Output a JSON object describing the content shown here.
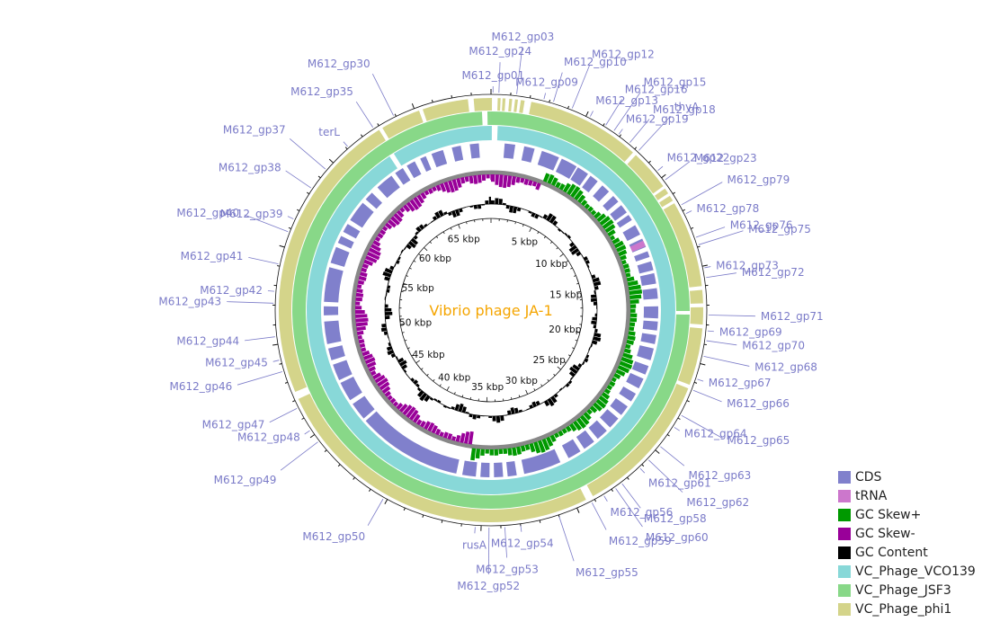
{
  "title": "Vibrio phage JA-1",
  "genome_kbp": 69,
  "colors": {
    "title": "#f5a500",
    "label": "#7b7bc8",
    "cds": "#8080cc",
    "trna": "#cc77cc",
    "gc_skew_plus": "#009900",
    "gc_skew_minus": "#990099",
    "gc_content": "#000000",
    "vco139": "#88d8d8",
    "jsf3": "#88d888",
    "phi1": "#d4d48a",
    "backbone": "#888888"
  },
  "kbp_ticks": [
    "5 kbp",
    "10 kbp",
    "15 kbp",
    "20 kbp",
    "25 kbp",
    "30 kbp",
    "35 kbp",
    "40 kbp",
    "45 kbp",
    "50 kbp",
    "55 kbp",
    "60 kbp",
    "65 kbp"
  ],
  "legend": [
    {
      "label": "CDS",
      "color": "#8080cc"
    },
    {
      "label": "tRNA",
      "color": "#cc77cc"
    },
    {
      "label": "GC Skew+",
      "color": "#009900"
    },
    {
      "label": "GC Skew-",
      "color": "#990099"
    },
    {
      "label": "GC Content",
      "color": "#000000"
    },
    {
      "label": "VC_Phage_VCO139",
      "color": "#88d8d8"
    },
    {
      "label": "VC_Phage_JSF3",
      "color": "#88d888"
    },
    {
      "label": "VC_Phage_phi1",
      "color": "#d4d48a"
    }
  ],
  "gene_labels": [
    {
      "text": "M612_gp01",
      "kbp": 0.1
    },
    {
      "text": "M612_gp24",
      "kbp": 0.4
    },
    {
      "text": "M612_gp03",
      "kbp": 1.3
    },
    {
      "text": "M612_gp09",
      "kbp": 2.7
    },
    {
      "text": "M612_gp10",
      "kbp": 3.2
    },
    {
      "text": "M612_gp12",
      "kbp": 4.2
    },
    {
      "text": "M612_gp13",
      "kbp": 5.2
    },
    {
      "text": "M612_gp16",
      "kbp": 6.1
    },
    {
      "text": "M612_gp15",
      "kbp": 6.6
    },
    {
      "text": "M612_gp19",
      "kbp": 6.9
    },
    {
      "text": "M612_gp18",
      "kbp": 7.6
    },
    {
      "text": "thyA",
      "kbp": 8.2
    },
    {
      "text": "M612_gp22",
      "kbp": 9.6
    },
    {
      "text": "M612_gp23",
      "kbp": 10.2
    },
    {
      "text": "M612_gp79",
      "kbp": 11.7
    },
    {
      "text": "M612_gp78",
      "kbp": 12.2
    },
    {
      "text": "M612_gp76",
      "kbp": 13.5
    },
    {
      "text": "M612_gp75",
      "kbp": 13.9
    },
    {
      "text": "M612_gp73",
      "kbp": 15.1
    },
    {
      "text": "M612_gp72",
      "kbp": 15.6
    },
    {
      "text": "M612_gp71",
      "kbp": 17.5
    },
    {
      "text": "M612_gp69",
      "kbp": 18.3
    },
    {
      "text": "M612_gp70",
      "kbp": 18.8
    },
    {
      "text": "M612_gp68",
      "kbp": 19.6
    },
    {
      "text": "M612_gp67",
      "kbp": 20.8
    },
    {
      "text": "M612_gp66",
      "kbp": 21.4
    },
    {
      "text": "M612_gp65",
      "kbp": 22.8
    },
    {
      "text": "M612_gp64",
      "kbp": 23.5
    },
    {
      "text": "M612_gp63",
      "kbp": 24.7
    },
    {
      "text": "M612_gp62",
      "kbp": 25.6
    },
    {
      "text": "M612_gp61",
      "kbp": 26.2
    },
    {
      "text": "M612_gp58",
      "kbp": 27.4
    },
    {
      "text": "M612_gp60",
      "kbp": 27.8
    },
    {
      "text": "M612_gp56",
      "kbp": 28.5
    },
    {
      "text": "M612_gp59",
      "kbp": 29.2
    },
    {
      "text": "M612_gp55",
      "kbp": 31.0
    },
    {
      "text": "M612_gp54",
      "kbp": 33.0
    },
    {
      "text": "M612_gp53",
      "kbp": 33.8
    },
    {
      "text": "M612_gp52",
      "kbp": 34.6
    },
    {
      "text": "rusA",
      "kbp": 35.3
    },
    {
      "text": "M612_gp50",
      "kbp": 40.2
    },
    {
      "text": "M612_gp49",
      "kbp": 44.6
    },
    {
      "text": "M612_gp48",
      "kbp": 45.3
    },
    {
      "text": "M612_gp47",
      "kbp": 46.6
    },
    {
      "text": "M612_gp46",
      "kbp": 48.6
    },
    {
      "text": "M612_gp45",
      "kbp": 49.2
    },
    {
      "text": "M612_gp44",
      "kbp": 50.4
    },
    {
      "text": "M612_gp43",
      "kbp": 52.1
    },
    {
      "text": "M612_gp42",
      "kbp": 52.7
    },
    {
      "text": "M612_gp41",
      "kbp": 54.1
    },
    {
      "text": "M612_gp40",
      "kbp": 55.8
    },
    {
      "text": "M612_gp39",
      "kbp": 56.5
    },
    {
      "text": "M612_gp38",
      "kbp": 58.3
    },
    {
      "text": "M612_gp37",
      "kbp": 59.5
    },
    {
      "text": "terL",
      "kbp": 61.1
    },
    {
      "text": "M612_gp35",
      "kbp": 62.7
    },
    {
      "text": "M612_gp30",
      "kbp": 63.9
    }
  ]
}
